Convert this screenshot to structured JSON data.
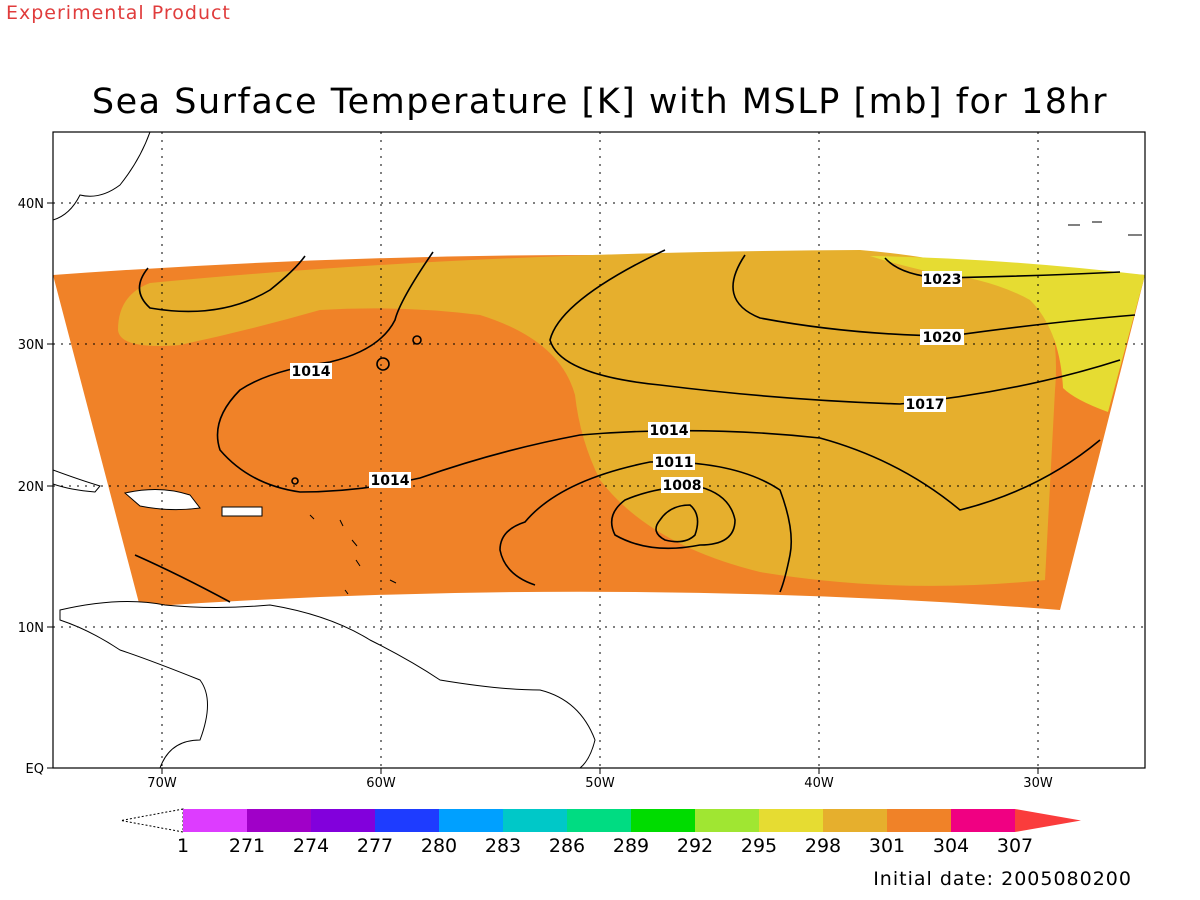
{
  "header": {
    "product_note": "Experimental Product",
    "title": "Sea Surface Temperature [K] with MSLP [mb] for 18hr"
  },
  "footer": {
    "initial_date": "Initial date: 2005080200"
  },
  "map": {
    "x_ticks": [
      "70W",
      "60W",
      "50W",
      "40W",
      "30W"
    ],
    "y_ticks": [
      "40N",
      "30N",
      "20N",
      "10N",
      "EQ"
    ],
    "grid": "dotted",
    "contour_labels": [
      "1023",
      "1020",
      "1017",
      "1014",
      "1014",
      "1014",
      "1011",
      "1008"
    ]
  },
  "colorbar": {
    "labels": [
      "1",
      "271",
      "274",
      "277",
      "280",
      "283",
      "286",
      "289",
      "292",
      "295",
      "298",
      "301",
      "304",
      "307"
    ],
    "colors": [
      "#dd3cff",
      "#a000c8",
      "#8200dc",
      "#1e3cff",
      "#00a0ff",
      "#00c8c8",
      "#00dc82",
      "#00dc00",
      "#a0e632",
      "#e6dc32",
      "#e6af2d",
      "#f08228",
      "#f00082",
      "#fa3c3c"
    ]
  },
  "chart_data": {
    "type": "map",
    "title": "Sea Surface Temperature [K] with MSLP [mb] for 18hr",
    "xlabel": "",
    "ylabel": "",
    "x_ticks": [
      "70W",
      "60W",
      "50W",
      "40W",
      "30W"
    ],
    "y_ticks": [
      "40N",
      "30N",
      "20N",
      "10N",
      "EQ"
    ],
    "sst_levels_K": [
      271,
      274,
      277,
      280,
      283,
      286,
      289,
      292,
      295,
      298,
      301,
      304,
      307
    ],
    "mslp_contours_mb": [
      1008,
      1011,
      1014,
      1017,
      1020,
      1023
    ],
    "sst_regions_K": [
      {
        "range": "301-304",
        "area": "western and southern Atlantic (Caribbean)"
      },
      {
        "range": "298-301",
        "area": "central and northeastern Atlantic"
      },
      {
        "range": "295-298",
        "area": "far northeast near 30W-25W, 28N-35N"
      }
    ],
    "low_center": {
      "value_mb": 1008,
      "approx_lon": "46W",
      "approx_lat": "17N"
    }
  }
}
